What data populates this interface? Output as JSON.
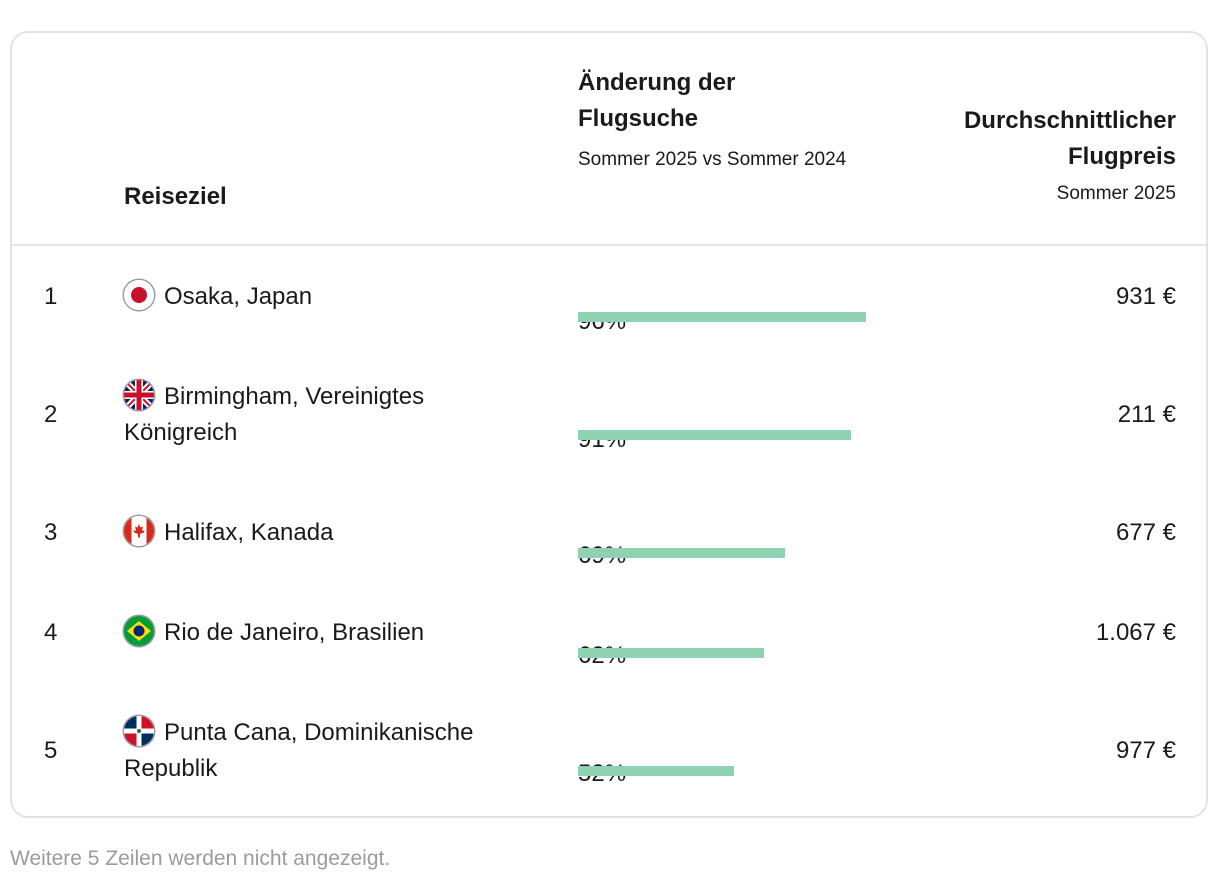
{
  "chart_data": {
    "type": "table",
    "columns": {
      "rank": "",
      "destination": "Reiseziel",
      "change_title": "Änderung der Flugsuche",
      "change_subtitle": "Sommer 2025 vs Sommer 2024",
      "price_title": "Durchschnittlicher Flugpreis",
      "price_subtitle": "Sommer 2025"
    },
    "rows": [
      {
        "rank": "1",
        "destination": "Osaka, Japan",
        "flag": "japan-flag-icon",
        "change_label": "96%",
        "change": 96,
        "price": "931 €"
      },
      {
        "rank": "2",
        "destination": "Birmingham, Vereinigtes Königreich",
        "flag": "uk-flag-icon",
        "change_label": "91%",
        "change": 91,
        "price": "211 €"
      },
      {
        "rank": "3",
        "destination": "Halifax, Kanada",
        "flag": "canada-flag-icon",
        "change_label": "69%",
        "change": 69,
        "price": "677 €"
      },
      {
        "rank": "4",
        "destination": "Rio de Janeiro, Brasilien",
        "flag": "brazil-flag-icon",
        "change_label": "62%",
        "change": 62,
        "price": "1.067 €"
      },
      {
        "rank": "5",
        "destination": "Punta Cana, Dominikanische Republik",
        "flag": "dominican-republic-flag-icon",
        "change_label": "52%",
        "change": 52,
        "price": "977 €"
      }
    ],
    "bar_max": 100,
    "bar_color": "#8fd1b0"
  },
  "footnote": "Weitere 5 Zeilen werden nicht angezeigt."
}
